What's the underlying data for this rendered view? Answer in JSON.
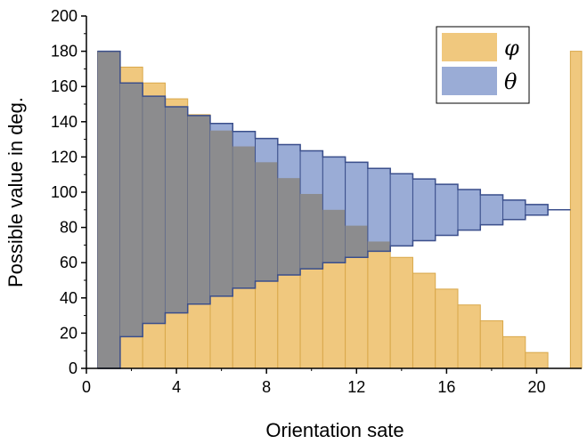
{
  "chart_data": {
    "type": "area",
    "title": "",
    "xlabel": "Orientation sate",
    "ylabel": "Possible value in deg.",
    "xlim": [
      0,
      22
    ],
    "ylim": [
      0,
      200
    ],
    "xticks": [
      0,
      4,
      8,
      12,
      16,
      20
    ],
    "yticks": [
      0,
      20,
      40,
      60,
      80,
      100,
      120,
      140,
      160,
      180,
      200
    ],
    "grid": false,
    "legend_position": "top-right",
    "step_x": [
      1,
      2,
      3,
      4,
      5,
      6,
      7,
      8,
      9,
      10,
      11,
      12,
      13,
      14,
      15,
      16,
      17,
      18,
      19,
      20,
      21,
      22
    ],
    "series": [
      {
        "name": "φ",
        "color": "#f0c87e",
        "edge_color": "#d9a84a",
        "lower": [
          0,
          0,
          0,
          0,
          0,
          0,
          0,
          0,
          0,
          0,
          0,
          0,
          0,
          0,
          0,
          0,
          0,
          0,
          0,
          0,
          0,
          0
        ],
        "upper": [
          180,
          171,
          162,
          153,
          144,
          135,
          126,
          117,
          108,
          99,
          90,
          81,
          72,
          63,
          54,
          45,
          36,
          27,
          18,
          9,
          0,
          180
        ]
      },
      {
        "name": "θ",
        "color": "#9aacd6",
        "edge_color": "#3b4f8c",
        "lower": [
          0,
          18,
          25.5,
          31.5,
          36.5,
          41,
          45.5,
          49.5,
          53,
          56.5,
          60,
          63,
          66.5,
          69.5,
          72.5,
          75.5,
          78.5,
          81.5,
          84.5,
          87,
          90,
          null
        ],
        "upper": [
          180,
          162,
          154.5,
          148.5,
          143.5,
          139,
          134.5,
          130.5,
          127,
          123.5,
          120,
          117,
          113.5,
          110.5,
          107.5,
          104.5,
          101.5,
          98.5,
          95.5,
          93,
          90,
          null
        ]
      }
    ]
  }
}
